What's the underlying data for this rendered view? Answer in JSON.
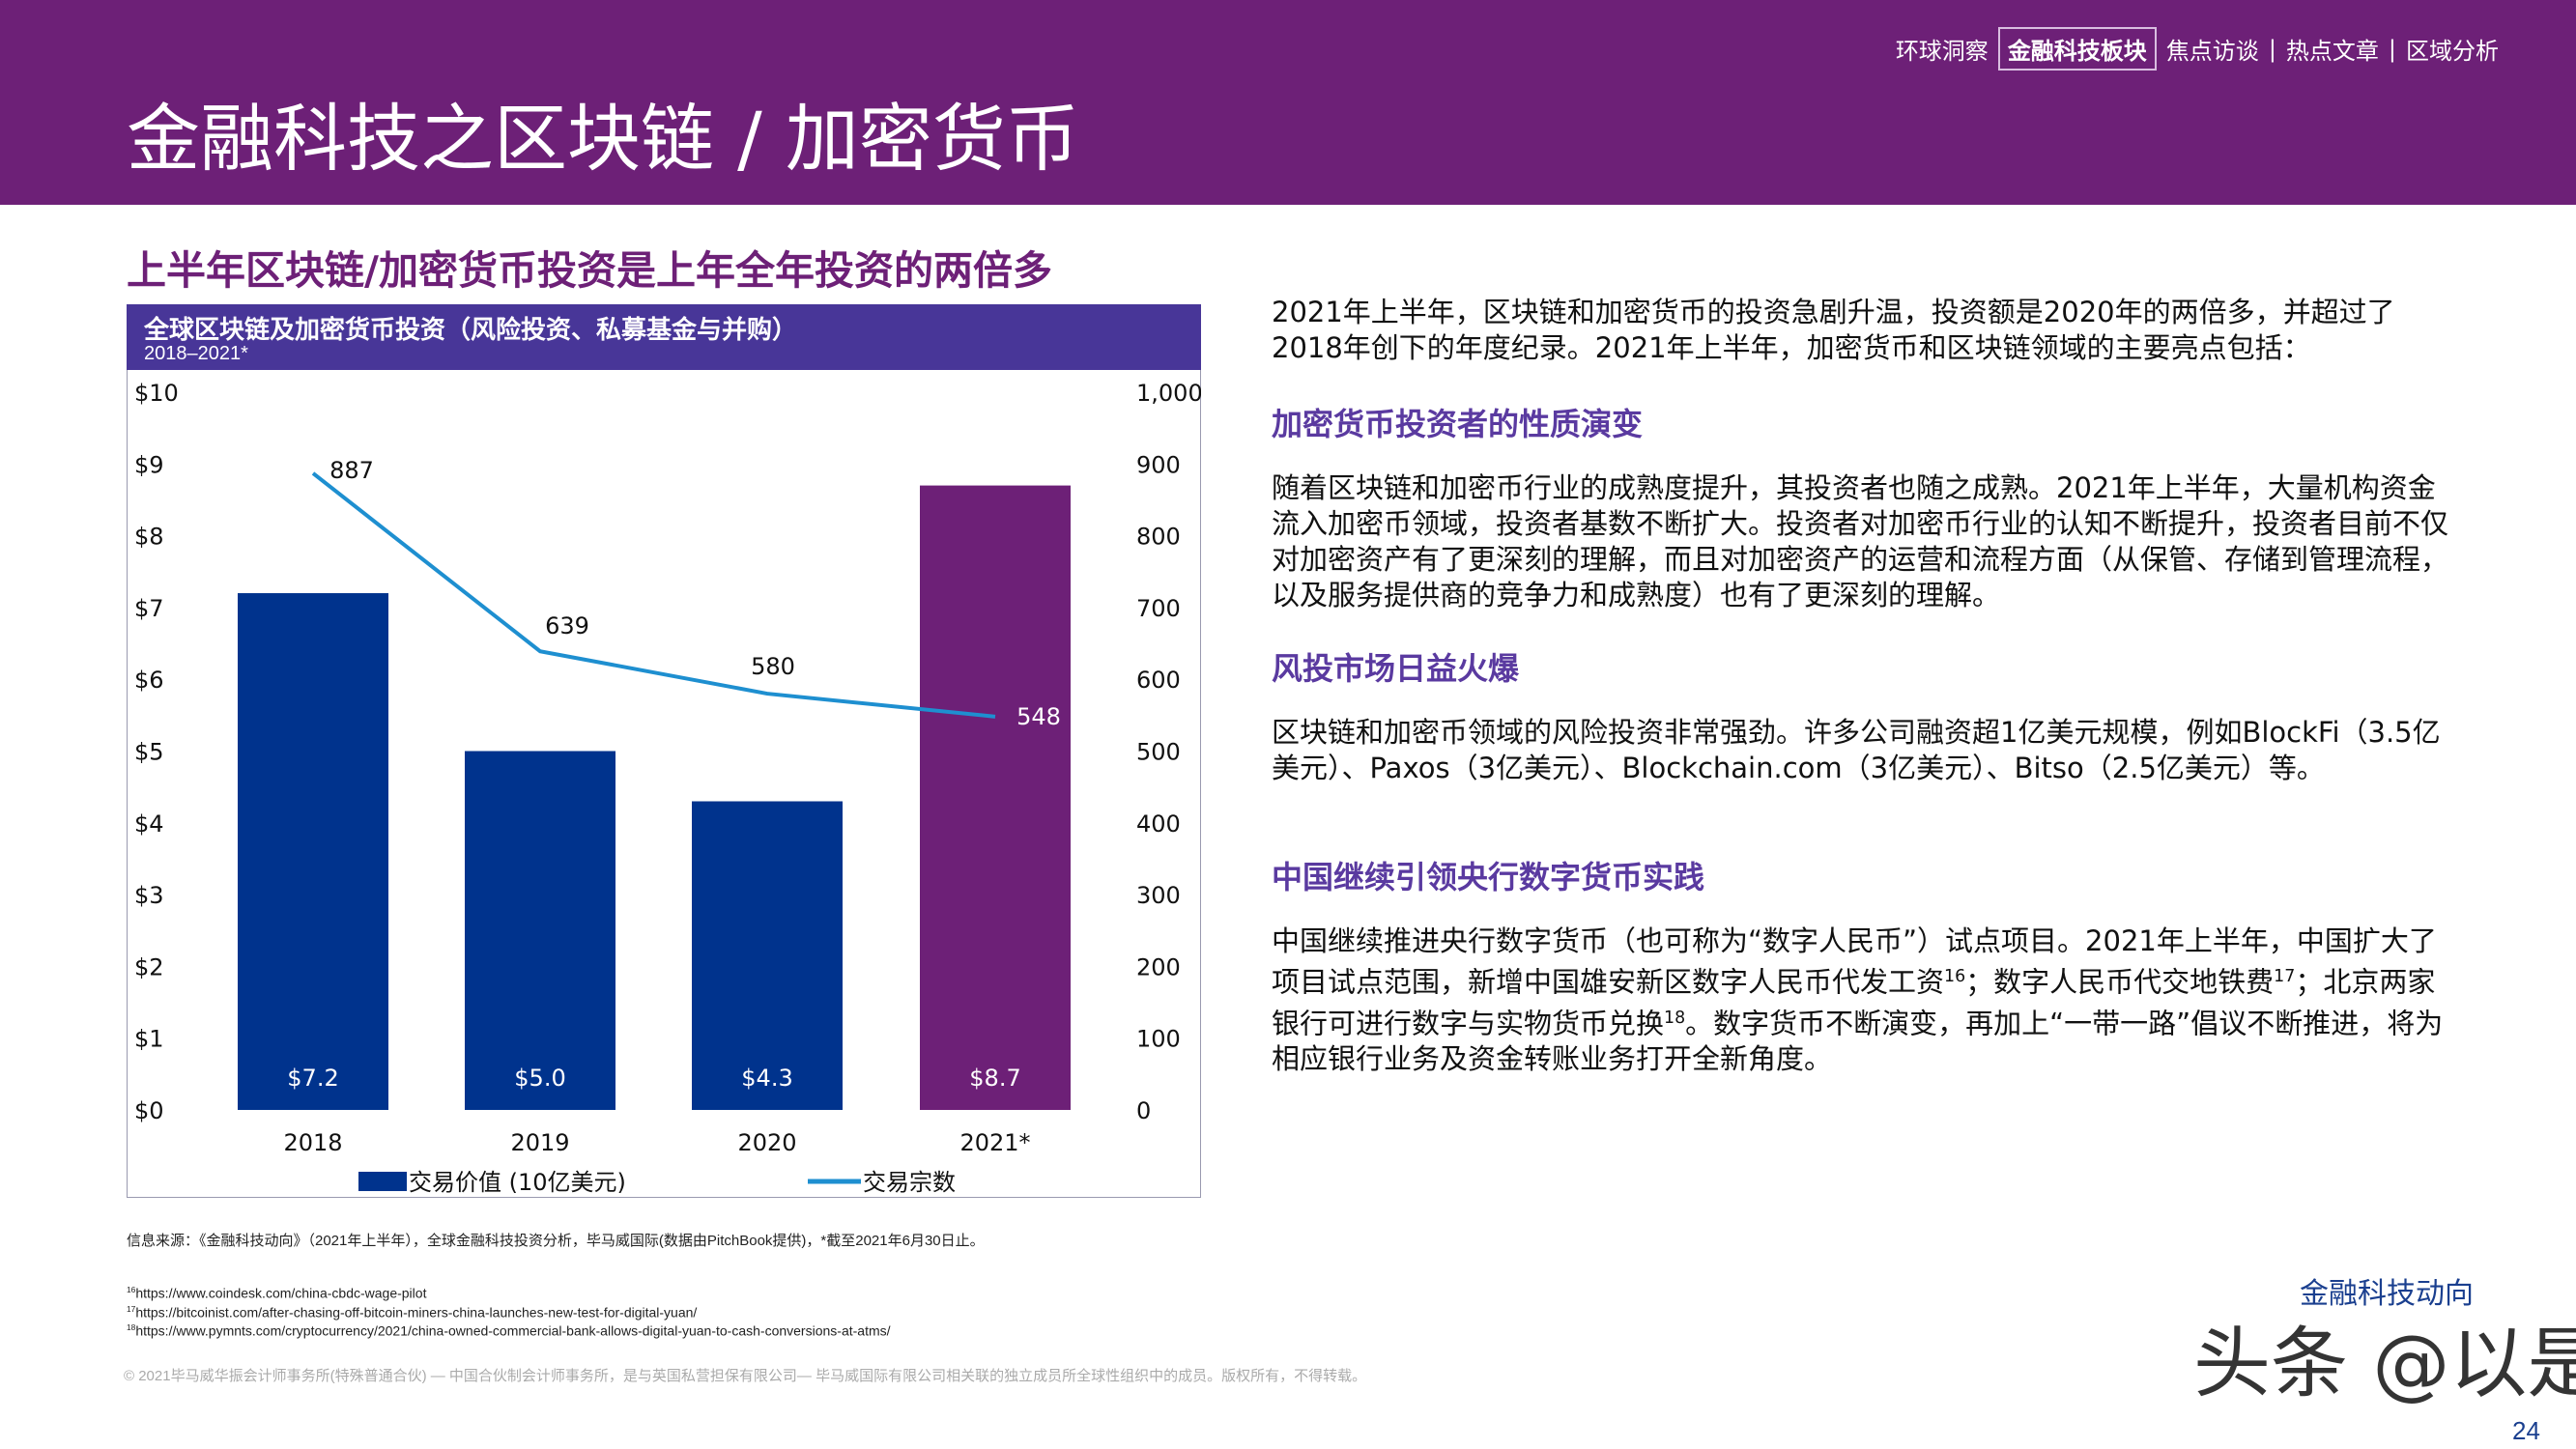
{
  "header": {
    "title": "金融科技之区块链 / 加密货币",
    "nav": [
      "环球洞察",
      "金融科技板块",
      "焦点访谈",
      "热点文章",
      "区域分析"
    ],
    "nav_active": "金融科技板块",
    "brand_color": "#6D2077"
  },
  "subheading": "上半年区块链/加密货币投资是上年全年投资的两倍多",
  "chart": {
    "title": "全球区块链及加密货币投资（风险投资、私募基金与并购）",
    "subtitle": "2018–2021*",
    "legend": {
      "bars": "交易价值 (10亿美元)",
      "line": "交易宗数"
    }
  },
  "chart_data": {
    "type": "bar+line",
    "categories": [
      "2018",
      "2019",
      "2020",
      "2021*"
    ],
    "series": [
      {
        "name": "交易价值 (10亿美元)",
        "type": "bar",
        "axis": "left",
        "values": [
          7.2,
          5.0,
          4.3,
          8.7
        ],
        "labels": [
          "$7.2",
          "$5.0",
          "$4.3",
          "$8.7"
        ],
        "colors": [
          "#00338D",
          "#00338D",
          "#00338D",
          "#6D2077"
        ]
      },
      {
        "name": "交易宗数",
        "type": "line",
        "axis": "right",
        "values": [
          887,
          639,
          580,
          548
        ],
        "labels": [
          "887",
          "639",
          "580",
          "548"
        ],
        "color": "#1E8FD0"
      }
    ],
    "left_axis": {
      "ylim": [
        0,
        10
      ],
      "ticks": [
        "$0",
        "$1",
        "$2",
        "$3",
        "$4",
        "$5",
        "$6",
        "$7",
        "$8",
        "$9",
        "$10"
      ]
    },
    "right_axis": {
      "ylim": [
        0,
        1000
      ],
      "ticks": [
        "0",
        "100",
        "200",
        "300",
        "400",
        "500",
        "600",
        "700",
        "800",
        "900",
        "1,000"
      ]
    },
    "grid": false,
    "legend_position": "bottom"
  },
  "body": {
    "intro": "2021年上半年，区块链和加密货币的投资急剧升温，投资额是2020年的两倍多，并超过了2018年创下的年度纪录。2021年上半年，加密货币和区块链领域的主要亮点包括：",
    "sections": [
      {
        "heading": "加密货币投资者的性质演变",
        "text": "随着区块链和加密币行业的成熟度提升，其投资者也随之成熟。2021年上半年，大量机构资金流入加密币领域，投资者基数不断扩大。投资者对加密币行业的认知不断提升，投资者目前不仅对加密资产有了更深刻的理解，而且对加密资产的运营和流程方面（从保管、存储到管理流程，以及服务提供商的竞争力和成熟度）也有了更深刻的理解。"
      },
      {
        "heading": "风投市场日益火爆",
        "text": "区块链和加密币领域的风险投资非常强劲。许多公司融资超1亿美元规模，例如BlockFi（3.5亿美元）、Paxos（3亿美元）、Blockchain.com（3亿美元）、Bitso（2.5亿美元）等。"
      },
      {
        "heading": "中国继续引领央行数字货币实践",
        "text_parts": [
          "中国继续推进央行数字货币（也可称为“数字人民币”）试点项目。2021年上半年，中国扩大了项目试点范围，新增中国雄安新区数字人民币代发工资",
          "16",
          "；数字人民币代交地铁费",
          "17",
          "；北京两家银行可进行数字与实物货币兑换",
          "18",
          "。数字货币不断演变，再加上“一带一路”倡议不断推进，将为相应银行业务及资金转账业务打开全新角度。"
        ]
      }
    ]
  },
  "footer": {
    "source": "信息来源：《金融科技动向》（2021年上半年），全球金融科技投资分析，毕马威国际(数据由PitchBook提供)，*截至2021年6月30日止。",
    "footnotes": [
      {
        "num": "16",
        "url": "https://www.coindesk.com/china-cbdc-wage-pilot"
      },
      {
        "num": "17",
        "url": "https://bitcoinist.com/after-chasing-off-bitcoin-miners-china-launches-new-test-for-digital-yuan/"
      },
      {
        "num": "18",
        "url": "https://www.pymnts.com/cryptocurrency/2021/china-owned-commercial-bank-allows-digital-yuan-to-cash-conversions-at-atms/"
      }
    ],
    "copyright": "© 2021毕马威华振会计师事务所(特殊普通合伙) — 中国合伙制会计师事务所，是与英国私营担保有限公司— 毕马威国际有限公司相关联的独立成员所全球性组织中的成员。版权所有，不得转载。",
    "brand": "金融科技动向",
    "page": "24",
    "watermark": "头条 @以是"
  }
}
